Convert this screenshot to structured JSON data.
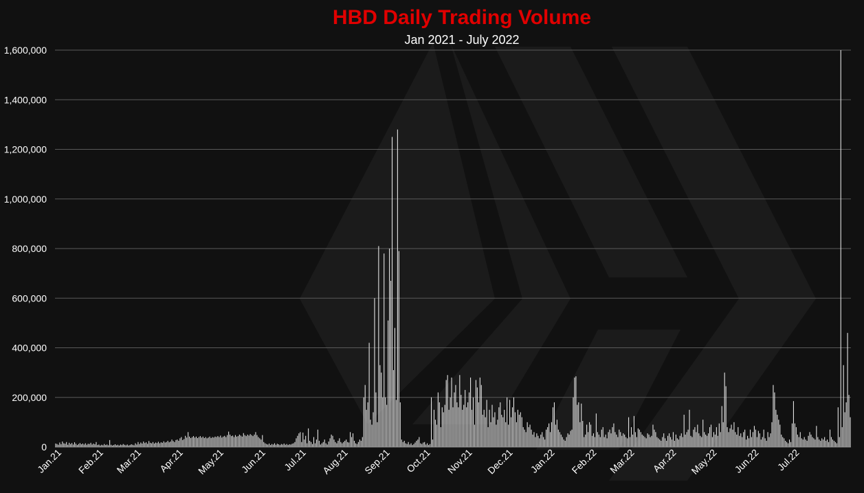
{
  "chart_data": {
    "type": "bar",
    "title": "HBD Daily Trading Volume",
    "subtitle": "Jan 2021 - July 2022",
    "xlabel": "",
    "ylabel": "",
    "ylim": [
      0,
      1600000
    ],
    "y_ticks": [
      0,
      200000,
      400000,
      600000,
      800000,
      1000000,
      1200000,
      1400000,
      1600000
    ],
    "y_tick_labels": [
      "0",
      "200,000",
      "400,000",
      "600,000",
      "800,000",
      "1,000,000",
      "1,200,000",
      "1,400,000",
      "1,600,000"
    ],
    "x_tick_labels": [
      "Jan.21",
      "Feb.21",
      "Mar.21",
      "Apr.21",
      "May.21",
      "Jun.21",
      "Jul.21",
      "Aug.21",
      "Sep.21",
      "Oct.21",
      "Nov.21",
      "Dec.21",
      "Jan.22",
      "Feb.22",
      "Mar.22",
      "Apr.22",
      "May.22",
      "Jun.22",
      "Jul.22"
    ],
    "grid": true,
    "legend": "none",
    "colors": {
      "background": "#111111",
      "bars": "#e8e8e8",
      "title": "#e00000",
      "grid": "#5a5a5a",
      "watermark": "#1e1e1e"
    },
    "watermark_icon": "hive-logo-icon",
    "monthly_values": [
      [
        14000,
        12000,
        9000,
        18000,
        11000,
        22000,
        15000,
        13000,
        20000,
        9000,
        17000,
        12000,
        16000,
        10000,
        19000,
        13000,
        8000,
        12000,
        16000,
        11000,
        14000,
        10000,
        15000,
        9000,
        13000,
        12000,
        17000,
        10000,
        14000,
        11000,
        20000
      ],
      [
        8000,
        10000,
        6000,
        9000,
        7000,
        12000,
        8000,
        10000,
        7000,
        28000,
        9000,
        6000,
        8000,
        11000,
        7000,
        9000,
        6000,
        10000,
        8000,
        12000,
        9000,
        7000,
        10000,
        6000,
        8000,
        11000,
        9000,
        7000
      ],
      [
        15000,
        10000,
        20000,
        12000,
        18000,
        14000,
        22000,
        16000,
        19000,
        13000,
        24000,
        17000,
        15000,
        20000,
        14000,
        18000,
        16000,
        21000,
        15000,
        19000,
        17000,
        23000,
        18000,
        20000,
        25000,
        19000,
        22000,
        30000,
        24000,
        20000,
        28000
      ],
      [
        30000,
        25000,
        35000,
        40000,
        28000,
        32000,
        45000,
        38000,
        60000,
        42000,
        36000,
        40000,
        44000,
        38000,
        42000,
        36000,
        40000,
        44000,
        38000,
        42000,
        36000,
        40000,
        35000,
        38000,
        42000,
        36000,
        40000,
        38000,
        42000,
        40000
      ],
      [
        44000,
        40000,
        46000,
        38000,
        42000,
        45000,
        40000,
        48000,
        62000,
        50000,
        44000,
        46000,
        40000,
        48000,
        42000,
        44000,
        50000,
        46000,
        42000,
        56000,
        48000,
        44000,
        50000,
        46000,
        52000,
        48000,
        44000,
        50000,
        60000,
        48000,
        40000
      ],
      [
        35000,
        30000,
        48000,
        20000,
        15000,
        12000,
        10000,
        14000,
        8000,
        12000,
        10000,
        15000,
        9000,
        13000,
        11000,
        8000,
        12000,
        10000,
        14000,
        9000,
        12000,
        8000,
        11000,
        10000,
        13000,
        15000,
        20000,
        35000,
        45000,
        55000
      ],
      [
        60000,
        20000,
        58000,
        30000,
        45000,
        15000,
        75000,
        25000,
        20000,
        12000,
        40000,
        15000,
        30000,
        70000,
        25000,
        10000,
        15000,
        20000,
        30000,
        15000,
        10000,
        22000,
        35000,
        50000,
        45000,
        30000,
        20000,
        15000,
        25000,
        35000,
        20000
      ],
      [
        15000,
        20000,
        25000,
        30000,
        20000,
        18000,
        60000,
        40000,
        55000,
        25000,
        15000,
        12000,
        20000,
        30000,
        25000,
        40000,
        200000,
        250000,
        150000,
        180000,
        420000,
        110000,
        90000,
        140000,
        600000,
        220000,
        100000,
        810000,
        330000,
        300000,
        200000
      ],
      [
        780000,
        200000,
        170000,
        510000,
        800000,
        670000,
        1250000,
        310000,
        480000,
        190000,
        1280000,
        790000,
        180000,
        30000,
        20000,
        25000,
        15000,
        12000,
        20000,
        10000,
        15000,
        8000,
        12000,
        18000,
        25000,
        30000,
        40000,
        15000,
        12000,
        18000
      ],
      [
        20000,
        10000,
        15000,
        8000,
        12000,
        200000,
        30000,
        150000,
        110000,
        90000,
        220000,
        180000,
        80000,
        160000,
        140000,
        170000,
        270000,
        290000,
        150000,
        200000,
        280000,
        160000,
        220000,
        250000,
        180000,
        160000,
        290000,
        210000,
        150000,
        170000,
        230000
      ],
      [
        160000,
        180000,
        220000,
        280000,
        150000,
        200000,
        90000,
        270000,
        240000,
        180000,
        280000,
        250000,
        130000,
        150000,
        120000,
        190000,
        80000,
        150000,
        100000,
        170000,
        120000,
        140000,
        90000,
        110000,
        160000,
        180000,
        130000,
        120000,
        150000,
        100000
      ],
      [
        200000,
        90000,
        190000,
        120000,
        160000,
        200000,
        140000,
        100000,
        150000,
        130000,
        140000,
        120000,
        80000,
        70000,
        60000,
        100000,
        80000,
        90000,
        70000,
        50000,
        60000,
        40000,
        55000,
        45000,
        35000,
        50000,
        60000,
        40000,
        30000,
        70000,
        80000
      ],
      [
        95000,
        60000,
        100000,
        160000,
        180000,
        90000,
        110000,
        70000,
        60000,
        50000,
        40000,
        30000,
        25000,
        40000,
        55000,
        50000,
        65000,
        70000,
        200000,
        280000,
        285000,
        170000,
        180000,
        100000,
        175000,
        105000,
        40000,
        50000,
        90000,
        60000,
        100000
      ],
      [
        90000,
        45000,
        55000,
        40000,
        135000,
        60000,
        50000,
        40000,
        70000,
        80000,
        40000,
        50000,
        35000,
        60000,
        70000,
        55000,
        80000,
        95000,
        60000,
        50000,
        40000,
        70000,
        60000,
        45000,
        55000,
        50000,
        40000,
        35000
      ],
      [
        120000,
        40000,
        80000,
        50000,
        125000,
        60000,
        40000,
        75000,
        70000,
        60000,
        50000,
        45000,
        40000,
        35000,
        55000,
        50000,
        40000,
        45000,
        90000,
        70000,
        60000,
        40000,
        35000,
        30000,
        25000,
        40000,
        55000,
        35000,
        25000,
        45000,
        55000
      ],
      [
        40000,
        30000,
        60000,
        25000,
        50000,
        35000,
        30000,
        45000,
        55000,
        40000,
        130000,
        50000,
        60000,
        70000,
        150000,
        45000,
        40000,
        70000,
        80000,
        60000,
        90000,
        55000,
        45000,
        40000,
        110000,
        60000,
        50000,
        45000,
        55000,
        80000
      ],
      [
        90000,
        40000,
        60000,
        50000,
        80000,
        45000,
        95000,
        60000,
        165000,
        100000,
        300000,
        245000,
        80000,
        60000,
        75000,
        90000,
        70000,
        100000,
        60000,
        50000,
        80000,
        45000,
        55000,
        40000,
        60000,
        70000,
        30000,
        45000,
        35000,
        70000,
        40000
      ],
      [
        60000,
        85000,
        70000,
        40000,
        65000,
        55000,
        30000,
        40000,
        70000,
        35000,
        25000,
        60000,
        40000,
        55000,
        100000,
        250000,
        220000,
        150000,
        130000,
        110000,
        90000,
        50000,
        40000,
        35000,
        25000,
        20000,
        15000,
        30000,
        20000,
        95000
      ],
      [
        185000,
        95000,
        80000,
        50000,
        40000,
        60000,
        35000,
        30000,
        40000,
        30000,
        25000,
        45000,
        60000,
        50000,
        40000,
        35000,
        30000,
        85000,
        40000,
        30000,
        25000,
        35000,
        30000,
        40000,
        25000,
        30000,
        20000,
        70000,
        40000,
        30000,
        25000
      ],
      [
        20000,
        15000,
        160000,
        40000,
        1600000,
        80000,
        330000,
        140000,
        180000,
        460000,
        210000,
        120000
      ]
    ]
  }
}
